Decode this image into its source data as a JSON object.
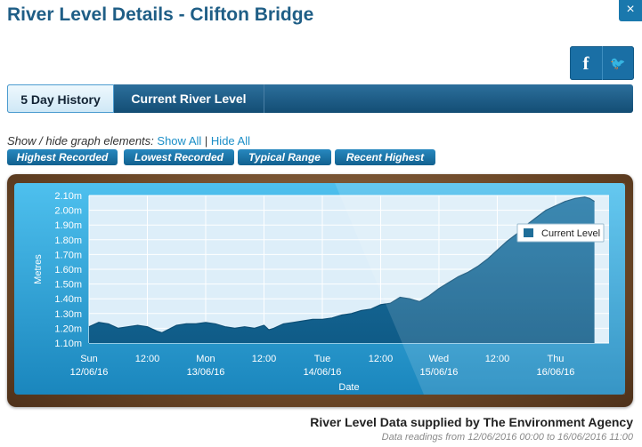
{
  "page": {
    "title": "River Level Details - Clifton Bridge",
    "close_label": "×"
  },
  "share": {
    "facebook_label": "f",
    "twitter_label": "🐦"
  },
  "tabs": [
    {
      "label": "5 Day History",
      "active": true
    },
    {
      "label": "Current River Level",
      "active": false
    }
  ],
  "graph_controls": {
    "prompt": "Show / hide graph elements:",
    "show_all": "Show All",
    "separator": "|",
    "hide_all": "Hide All",
    "toggles": [
      "Highest Recorded",
      "Lowest Recorded",
      "Typical Range",
      "Recent Highest"
    ]
  },
  "chart_data": {
    "type": "area",
    "ylabel": "Metres",
    "xlabel": "Date",
    "ylim": [
      1.1,
      2.1
    ],
    "y_ticks": [
      "1.10m",
      "1.20m",
      "1.30m",
      "1.40m",
      "1.50m",
      "1.60m",
      "1.70m",
      "1.80m",
      "1.90m",
      "2.00m",
      "2.10m"
    ],
    "x_tick_labels": [
      {
        "line1": "Sun",
        "line2": "12/06/16",
        "hour": 0
      },
      {
        "line1": "12:00",
        "line2": "",
        "hour": 12
      },
      {
        "line1": "Mon",
        "line2": "13/06/16",
        "hour": 24
      },
      {
        "line1": "12:00",
        "line2": "",
        "hour": 36
      },
      {
        "line1": "Tue",
        "line2": "14/06/16",
        "hour": 48
      },
      {
        "line1": "12:00",
        "line2": "",
        "hour": 60
      },
      {
        "line1": "Wed",
        "line2": "15/06/16",
        "hour": 72
      },
      {
        "line1": "12:00",
        "line2": "",
        "hour": 84
      },
      {
        "line1": "Thu",
        "line2": "16/06/16",
        "hour": 96
      }
    ],
    "grid": true,
    "legend_position": "right",
    "series": [
      {
        "name": "Current Level",
        "color": "#1f6e99",
        "points": [
          [
            0,
            1.21
          ],
          [
            2,
            1.24
          ],
          [
            4,
            1.23
          ],
          [
            6,
            1.2
          ],
          [
            8,
            1.21
          ],
          [
            10,
            1.22
          ],
          [
            12,
            1.21
          ],
          [
            14,
            1.18
          ],
          [
            15,
            1.17
          ],
          [
            18,
            1.22
          ],
          [
            20,
            1.23
          ],
          [
            22,
            1.23
          ],
          [
            24,
            1.24
          ],
          [
            26,
            1.23
          ],
          [
            28,
            1.21
          ],
          [
            30,
            1.2
          ],
          [
            32,
            1.21
          ],
          [
            34,
            1.2
          ],
          [
            36,
            1.22
          ],
          [
            37,
            1.19
          ],
          [
            38,
            1.2
          ],
          [
            40,
            1.23
          ],
          [
            42,
            1.24
          ],
          [
            44,
            1.25
          ],
          [
            46,
            1.26
          ],
          [
            48,
            1.26
          ],
          [
            50,
            1.27
          ],
          [
            52,
            1.29
          ],
          [
            54,
            1.3
          ],
          [
            56,
            1.32
          ],
          [
            58,
            1.33
          ],
          [
            60,
            1.36
          ],
          [
            62,
            1.37
          ],
          [
            64,
            1.41
          ],
          [
            66,
            1.4
          ],
          [
            68,
            1.38
          ],
          [
            70,
            1.42
          ],
          [
            72,
            1.47
          ],
          [
            74,
            1.51
          ],
          [
            76,
            1.55
          ],
          [
            78,
            1.58
          ],
          [
            80,
            1.62
          ],
          [
            82,
            1.67
          ],
          [
            84,
            1.73
          ],
          [
            86,
            1.79
          ],
          [
            88,
            1.84
          ],
          [
            90,
            1.9
          ],
          [
            92,
            1.95
          ],
          [
            94,
            2.0
          ],
          [
            96,
            2.03
          ],
          [
            98,
            2.06
          ],
          [
            100,
            2.08
          ],
          [
            102,
            2.09
          ],
          [
            103,
            2.08
          ],
          [
            104,
            2.06
          ]
        ]
      }
    ]
  },
  "footer": {
    "attribution": "River Level Data supplied by The Environment Agency",
    "date_range": "Data readings from 12/06/2016 00:00 to 16/06/2016 11:00"
  }
}
